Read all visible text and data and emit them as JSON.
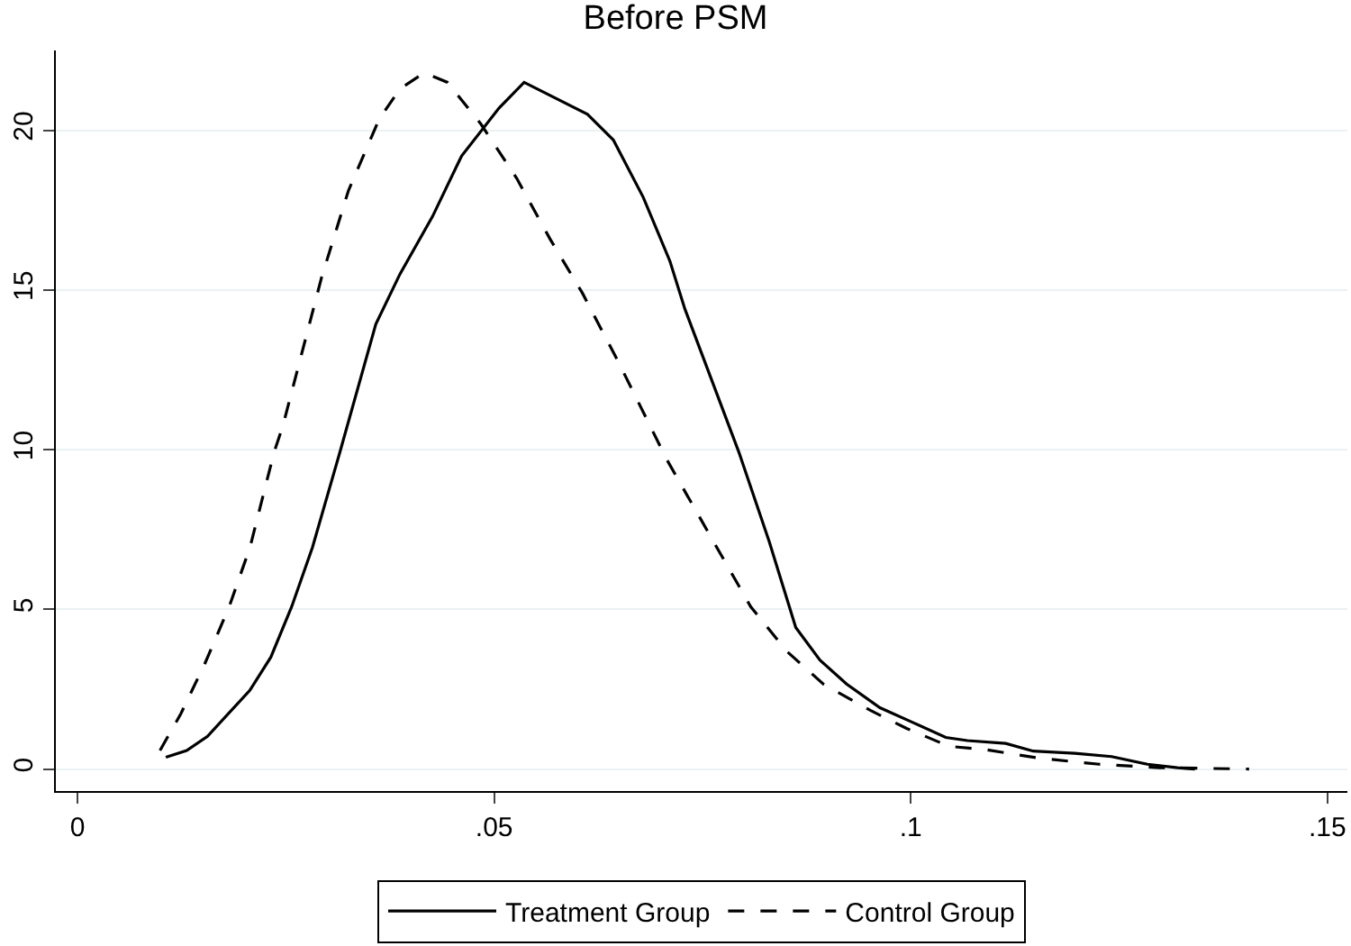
{
  "chart_data": {
    "type": "line",
    "title": "Before PSM",
    "xlim": [
      -0.0026,
      0.1524
    ],
    "xticks": [
      0,
      {
        "value": 0.05,
        "label": ".05"
      },
      {
        "value": 0.1,
        "label": ".1"
      },
      {
        "value": 0.15,
        "label": ".15"
      }
    ],
    "ylim": [
      -0.69,
      22.5
    ],
    "yticks": [
      0,
      5,
      10,
      15,
      20
    ],
    "grid": "y",
    "legend": "bottom",
    "marker": "none",
    "series": [
      {
        "name": "Treatment Group",
        "color": "#000000",
        "line_style": "solid",
        "x": [
          0.0106,
          0.0131,
          0.0156,
          0.0207,
          0.0232,
          0.0257,
          0.0282,
          0.0315,
          0.0358,
          0.0387,
          0.0426,
          0.0461,
          0.0506,
          0.0536,
          0.0612,
          0.0643,
          0.0679,
          0.0711,
          0.0729,
          0.0794,
          0.083,
          0.0862,
          0.0891,
          0.0923,
          0.0963,
          0.1003,
          0.1042,
          0.1068,
          0.1114,
          0.1147,
          0.1197,
          0.1241,
          0.1284,
          0.132,
          0.1341
        ],
        "values": [
          0.37,
          0.58,
          1.02,
          2.47,
          3.5,
          5.08,
          6.94,
          9.93,
          13.93,
          15.5,
          17.3,
          19.2,
          20.7,
          21.5,
          20.5,
          19.7,
          17.9,
          15.9,
          14.4,
          9.9,
          7.13,
          4.43,
          3.41,
          2.66,
          1.92,
          1.45,
          0.99,
          0.89,
          0.8,
          0.56,
          0.49,
          0.39,
          0.15,
          0.04,
          0.0
        ]
      },
      {
        "name": "Control Group",
        "color": "#000000",
        "line_style": "dashed",
        "x": [
          0.0099,
          0.0124,
          0.0153,
          0.0182,
          0.0207,
          0.0236,
          0.0246,
          0.0293,
          0.0325,
          0.0362,
          0.0387,
          0.0416,
          0.0444,
          0.0484,
          0.0527,
          0.0567,
          0.0606,
          0.065,
          0.0707,
          0.0765,
          0.0808,
          0.0851,
          0.0895,
          0.0952,
          0.0995,
          0.1046,
          0.1089,
          0.1154,
          0.1226,
          0.1298,
          0.1406
        ],
        "values": [
          0.58,
          1.73,
          3.31,
          5.08,
          6.94,
          9.93,
          10.7,
          15.4,
          18.1,
          20.35,
          21.3,
          21.8,
          21.5,
          20.2,
          18.5,
          16.6,
          14.9,
          12.7,
          9.7,
          7.04,
          5.08,
          3.69,
          2.66,
          1.83,
          1.27,
          0.71,
          0.61,
          0.34,
          0.15,
          0.04,
          0.0
        ]
      }
    ]
  }
}
